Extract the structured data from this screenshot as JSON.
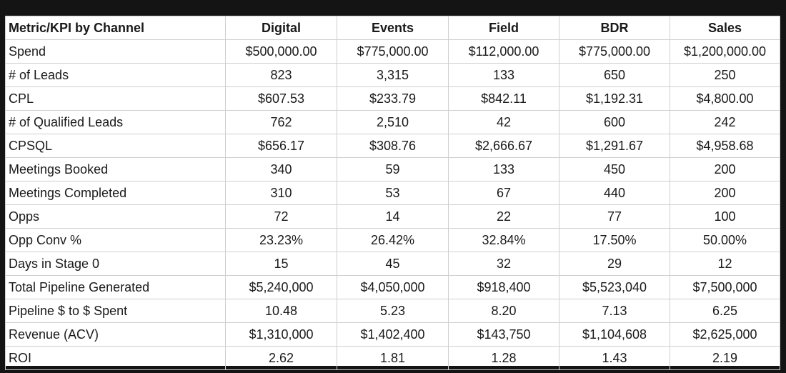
{
  "table": {
    "columns": [
      "Metric/KPI by Channel",
      "Digital",
      "Events",
      "Field",
      "BDR",
      "Sales"
    ],
    "rows": [
      [
        "Spend",
        "$500,000.00",
        "$775,000.00",
        "$112,000.00",
        "$775,000.00",
        "$1,200,000.00"
      ],
      [
        "# of Leads",
        "823",
        "3,315",
        "133",
        "650",
        "250"
      ],
      [
        "CPL",
        "$607.53",
        "$233.79",
        "$842.11",
        "$1,192.31",
        "$4,800.00"
      ],
      [
        "# of Qualified Leads",
        "762",
        "2,510",
        "42",
        "600",
        "242"
      ],
      [
        "CPSQL",
        "$656.17",
        "$308.76",
        "$2,666.67",
        "$1,291.67",
        "$4,958.68"
      ],
      [
        "Meetings Booked",
        "340",
        "59",
        "133",
        "450",
        "200"
      ],
      [
        "Meetings Completed",
        "310",
        "53",
        "67",
        "440",
        "200"
      ],
      [
        "Opps",
        "72",
        "14",
        "22",
        "77",
        "100"
      ],
      [
        "Opp Conv %",
        "23.23%",
        "26.42%",
        "32.84%",
        "17.50%",
        "50.00%"
      ],
      [
        "Days in Stage 0",
        "15",
        "45",
        "32",
        "29",
        "12"
      ],
      [
        "Total Pipeline Generated",
        "$5,240,000",
        "$4,050,000",
        "$918,400",
        "$5,523,040",
        "$7,500,000"
      ],
      [
        "Pipeline $ to $ Spent",
        "10.48",
        "5.23",
        "8.20",
        "7.13",
        "6.25"
      ],
      [
        "Revenue (ACV)",
        "$1,310,000",
        "$1,402,400",
        "$143,750",
        "$1,104,608",
        "$2,625,000"
      ],
      [
        "ROI",
        "2.62",
        "1.81",
        "1.28",
        "1.43",
        "2.19"
      ]
    ]
  }
}
